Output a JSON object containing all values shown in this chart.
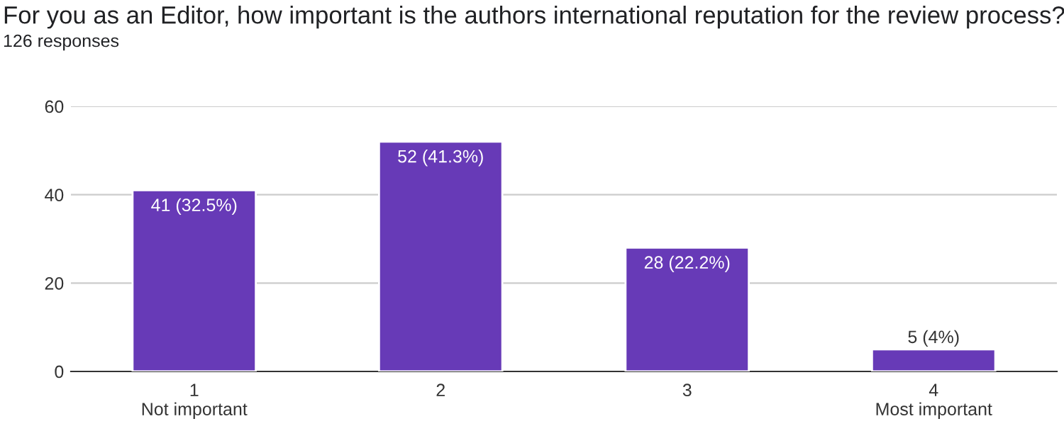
{
  "chart_data": {
    "type": "bar",
    "title": "For you as an Editor, how important is the authors international reputation for the review process?",
    "subtitle": "126 responses",
    "categories": [
      "1\nNot important",
      "2",
      "3",
      "4\nMost important"
    ],
    "values": [
      41,
      52,
      28,
      5
    ],
    "value_labels": [
      "41 (32.5%)",
      "52 (41.3%)",
      "28 (22.2%)",
      "5 (4%)"
    ],
    "color": "#673ab7",
    "ylim": [
      0,
      60
    ],
    "yticks": [
      0,
      20,
      40,
      60
    ],
    "grid": "y",
    "legend": false
  }
}
